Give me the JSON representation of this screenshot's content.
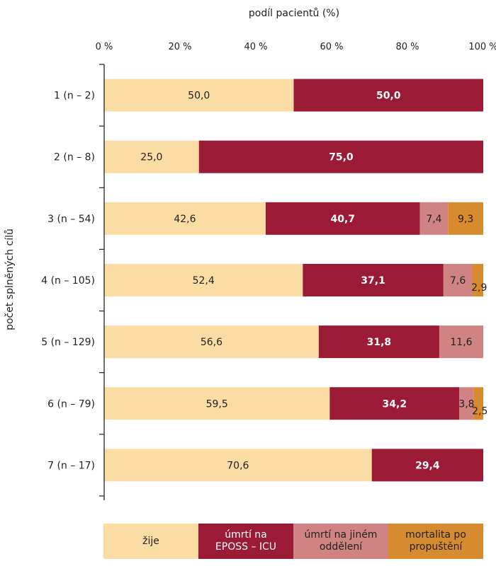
{
  "chart_data": {
    "type": "bar",
    "orientation": "horizontal",
    "stacked": true,
    "title": "",
    "xlabel": "podíl pacientů (%)",
    "ylabel": "počet splněných cílů",
    "xlim": [
      0,
      100
    ],
    "x_ticks": [
      "0 %",
      "20 %",
      "40 %",
      "60 %",
      "80 %",
      "100 %"
    ],
    "x_tick_values": [
      0,
      20,
      40,
      60,
      80,
      100
    ],
    "grid": false,
    "legend_position": "bottom",
    "categories": [
      "1 (n – 2)",
      "2 (n – 8)",
      "3 (n – 54)",
      "4 (n – 105)",
      "5 (n – 129)",
      "6 (n – 79)",
      "7 (n – 17)"
    ],
    "series": [
      {
        "name": "žije",
        "color": "#fcdca5",
        "label_color": "#222222",
        "values": [
          50.0,
          25.0,
          42.6,
          52.4,
          56.6,
          59.5,
          70.6
        ],
        "labels": [
          "50,0",
          "25,0",
          "42,6",
          "52,4",
          "56,6",
          "59,5",
          "70,6"
        ]
      },
      {
        "name": "úmrtí na\nEPOSS – ICU",
        "color": "#9b1b37",
        "label_color": "#ffffff",
        "values": [
          50.0,
          75.0,
          40.7,
          37.1,
          31.8,
          34.2,
          29.4
        ],
        "labels": [
          "50,0",
          "75,0",
          "40,7",
          "37,1",
          "31,8",
          "34,2",
          "29,4"
        ]
      },
      {
        "name": "úmrtí na jiném\noddělení",
        "color": "#cf8383",
        "label_color": "#222222",
        "values": [
          0,
          0,
          7.4,
          7.6,
          11.6,
          3.8,
          0
        ],
        "labels": [
          "",
          "",
          "7,4",
          "7,6",
          "11,6",
          "3,8",
          ""
        ]
      },
      {
        "name": "mortalita po\npropuštění",
        "color": "#d88b2e",
        "label_color": "#222222",
        "values": [
          0,
          0,
          9.3,
          2.9,
          0,
          2.5,
          0
        ],
        "labels": [
          "",
          "",
          "9,3",
          "2,9",
          "",
          "2,5",
          ""
        ]
      }
    ]
  }
}
